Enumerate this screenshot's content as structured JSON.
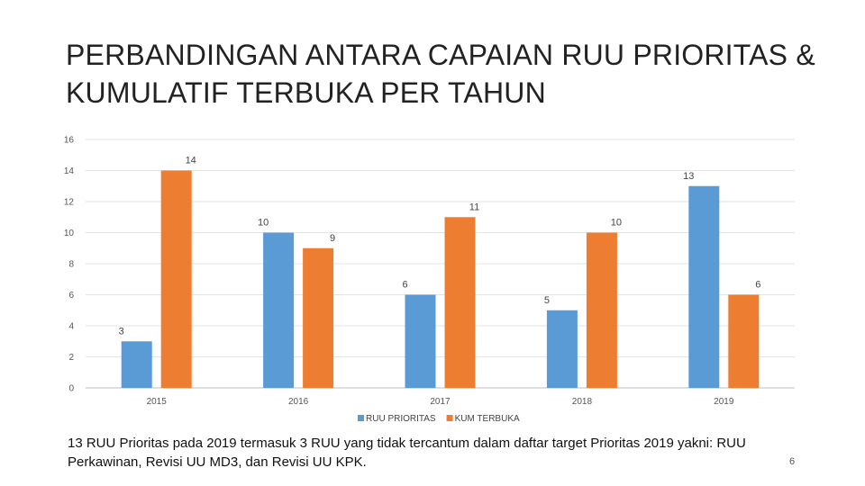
{
  "title": "PERBANDINGAN ANTARA CAPAIAN RUU PRIORITAS & KUMULATIF TERBUKA PER TAHUN",
  "footnote": "13 RUU Prioritas pada 2019 termasuk 3 RUU yang tidak tercantum dalam daftar target Prioritas 2019 yakni: RUU Perkawinan, Revisi UU MD3, dan Revisi UU KPK.",
  "page_number": "6",
  "chart_data": {
    "type": "bar",
    "title": "",
    "xlabel": "",
    "ylabel": "",
    "categories": [
      "2015",
      "2016",
      "2017",
      "2018",
      "2019"
    ],
    "series": [
      {
        "name": "RUU PRIORITAS",
        "values": [
          3,
          10,
          6,
          5,
          13
        ],
        "color": "#5B9BD5"
      },
      {
        "name": "KUM TERBUKA",
        "values": [
          14,
          9,
          11,
          10,
          6
        ],
        "color": "#ED7D31"
      }
    ],
    "ylim": [
      0,
      16
    ],
    "yticks": [
      "0",
      "2",
      "4",
      "6",
      "8",
      "10",
      "12",
      "14",
      "16"
    ],
    "grid": true,
    "legend": "bottom-center",
    "data_labels": true
  }
}
